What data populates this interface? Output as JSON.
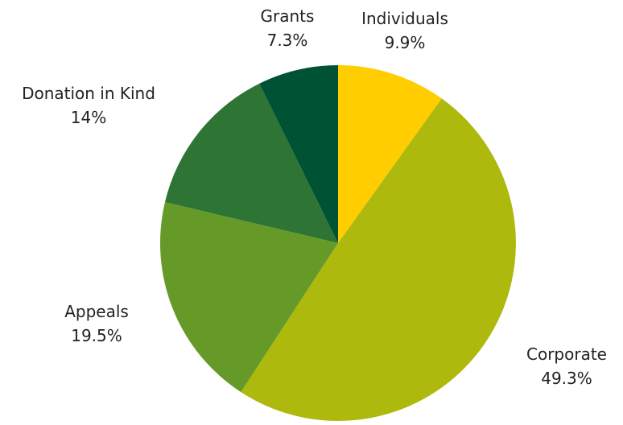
{
  "chart_data": {
    "type": "pie",
    "title": "",
    "slices": [
      {
        "label": "Individuals",
        "value": 9.9,
        "value_label": "9.9%",
        "color": "#FFCD00"
      },
      {
        "label": "Corporate",
        "value": 49.3,
        "value_label": "49.3%",
        "color": "#ADB90C"
      },
      {
        "label": "Appeals",
        "value": 19.5,
        "value_label": "19.5%",
        "color": "#669A28"
      },
      {
        "label": "Donation in Kind",
        "value": 14,
        "value_label": "14%",
        "color": "#2E7434"
      },
      {
        "label": "Grants",
        "value": 7.3,
        "value_label": "7.3%",
        "color": "#005234"
      }
    ],
    "start_angle": "12 o'clock",
    "direction": "clockwise",
    "legend": "none",
    "data_labels": "outside"
  }
}
